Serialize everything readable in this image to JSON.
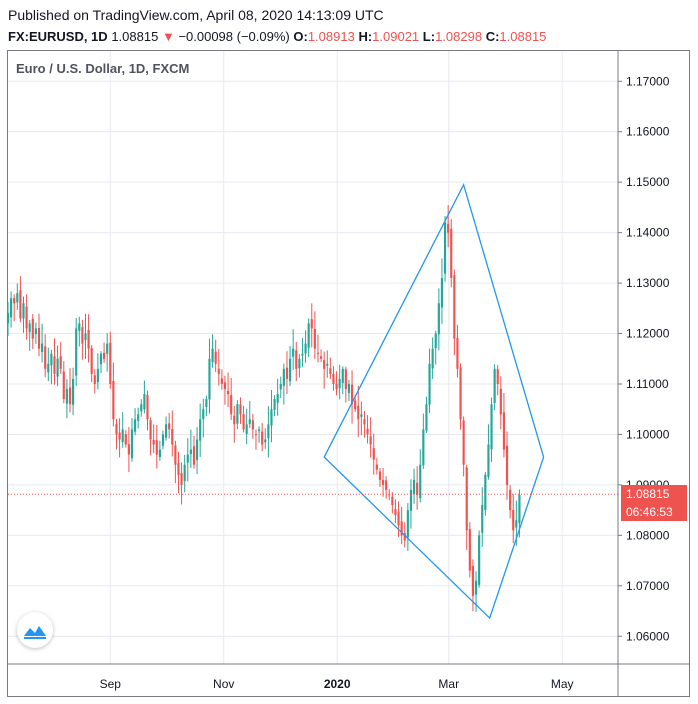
{
  "header": {
    "published": "Published on TradingView.com, April 08, 2020 14:13:09 UTC",
    "symbol": "FX:EURUSD, 1D",
    "last": "1.08815",
    "arrow": "▼",
    "change": "−0.00098 (−0.09%)",
    "o_label": "O:",
    "o_value": "1.08913",
    "h_label": "H:",
    "h_value": "1.09021",
    "l_label": "L:",
    "l_value": "1.08298",
    "c_label": "C:",
    "c_value": "1.08815"
  },
  "colors": {
    "up": "#26a69a",
    "down": "#ef5350",
    "pattern": "#2196f3",
    "grid": "#e6e9f0"
  },
  "chart_data": {
    "type": "candlestick",
    "title": "Euro / U.S. Dollar, 1D, FXCM",
    "y_ticks": [
      "1.06000",
      "1.07000",
      "1.08000",
      "1.09000",
      "1.10000",
      "1.11000",
      "1.12000",
      "1.13000",
      "1.14000",
      "1.15000",
      "1.16000",
      "1.17000"
    ],
    "ylim": [
      1.0545,
      1.176
    ],
    "x_ticks": [
      "Sep",
      "Nov",
      "2020",
      "Mar",
      "May"
    ],
    "x_tick_dates": [
      "2019-09-01",
      "2019-11-01",
      "2020-01-01",
      "2020-03-01",
      "2020-05-01"
    ],
    "xlim": [
      "2019-07-08",
      "2020-05-31"
    ],
    "last_price_label": "1.08815",
    "countdown_label": "06:46:53",
    "last_price": 1.08815,
    "close_series": {
      "start": "2019-07-08",
      "end": "2020-04-08",
      "values": [
        1.124,
        1.127,
        1.126,
        1.128,
        1.123,
        1.126,
        1.121,
        1.122,
        1.119,
        1.121,
        1.117,
        1.118,
        1.113,
        1.114,
        1.116,
        1.112,
        1.115,
        1.113,
        1.107,
        1.109,
        1.106,
        1.111,
        1.121,
        1.122,
        1.118,
        1.12,
        1.117,
        1.112,
        1.11,
        1.113,
        1.116,
        1.115,
        1.118,
        1.11,
        1.103,
        1.1,
        1.099,
        1.101,
        1.098,
        1.096,
        1.101,
        1.103,
        1.104,
        1.106,
        1.108,
        1.103,
        1.099,
        1.098,
        1.096,
        1.097,
        1.1,
        1.102,
        1.101,
        1.098,
        1.094,
        1.092,
        1.09,
        1.094,
        1.096,
        1.097,
        1.094,
        1.099,
        1.103,
        1.105,
        1.107,
        1.115,
        1.117,
        1.114,
        1.112,
        1.11,
        1.109,
        1.108,
        1.104,
        1.102,
        1.106,
        1.104,
        1.101,
        1.102,
        1.103,
        1.101,
        1.1,
        1.101,
        1.098,
        1.099,
        1.102,
        1.105,
        1.107,
        1.108,
        1.11,
        1.113,
        1.111,
        1.115,
        1.117,
        1.113,
        1.115,
        1.116,
        1.118,
        1.122,
        1.121,
        1.117,
        1.116,
        1.115,
        1.113,
        1.114,
        1.112,
        1.11,
        1.109,
        1.111,
        1.113,
        1.109,
        1.11,
        1.106,
        1.105,
        1.103,
        1.104,
        1.102,
        1.1,
        1.098,
        1.095,
        1.093,
        1.091,
        1.09,
        1.089,
        1.088,
        1.086,
        1.084,
        1.082,
        1.08,
        1.079,
        1.085,
        1.089,
        1.091,
        1.088,
        1.094,
        1.101,
        1.106,
        1.114,
        1.117,
        1.12,
        1.126,
        1.131,
        1.142,
        1.14,
        1.131,
        1.119,
        1.113,
        1.103,
        1.094,
        1.081,
        1.073,
        1.068,
        1.071,
        1.08,
        1.086,
        1.092,
        1.098,
        1.106,
        1.113,
        1.11,
        1.104,
        1.097,
        1.09,
        1.085,
        1.081,
        1.083,
        1.088
      ]
    },
    "pattern": [
      {
        "date": "2019-12-25",
        "price": 1.0955
      },
      {
        "date": "2020-03-09",
        "price": 1.1495
      },
      {
        "date": "2020-04-21",
        "price": 1.0955
      },
      {
        "date": "2020-03-23",
        "price": 1.0636
      }
    ]
  }
}
